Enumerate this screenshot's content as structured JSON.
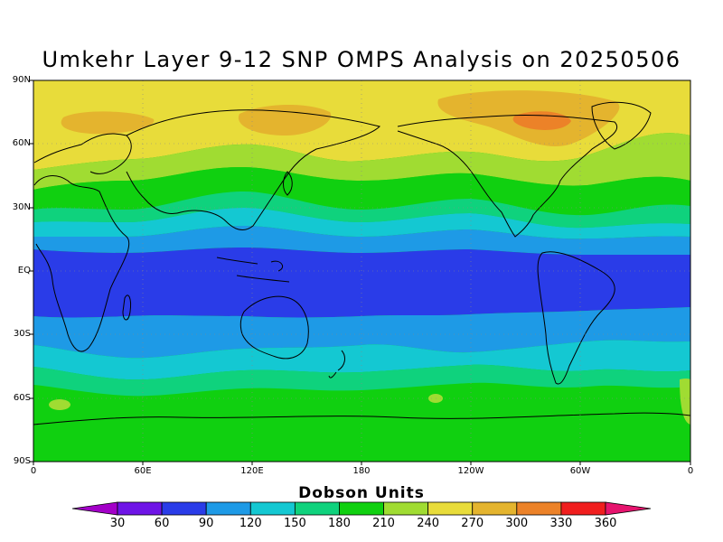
{
  "title": "Umkehr Layer 9-12 SNP OMPS Analysis on 20250506",
  "colorbar": {
    "label": "Dobson Units",
    "ticks": [
      "30",
      "60",
      "90",
      "120",
      "150",
      "180",
      "210",
      "240",
      "270",
      "300",
      "330",
      "360"
    ],
    "colors": [
      "#a300c8",
      "#6e14e6",
      "#2a3ce8",
      "#1e9ae6",
      "#14c8d2",
      "#0fd27d",
      "#10d010",
      "#a0dc32",
      "#e8dc3a",
      "#e4b42e",
      "#ec8228",
      "#f01e1e",
      "#e6146e"
    ]
  },
  "axes": {
    "lat_ticks": [
      "90N",
      "60N",
      "30N",
      "EQ",
      "30S",
      "60S",
      "90S"
    ],
    "lon_ticks": [
      "0",
      "60E",
      "120E",
      "180",
      "120W",
      "60W",
      "0"
    ]
  },
  "map_data": {
    "variable": "Umkehr ozone, layers 9-12",
    "units": "Dobson Units",
    "date": "20250506",
    "projection": "equirectangular",
    "bands": [
      {
        "region": "equatorial belt (~15N-20S)",
        "range": "60-90"
      },
      {
        "region": "tropics/subtropics (~15-40 both hemispheres)",
        "range": "90-150"
      },
      {
        "region": "southern mid-latitudes (~45S-90S)",
        "range": "180-210"
      },
      {
        "region": "northern mid-latitudes (~40N-55N)",
        "range": "180-240"
      },
      {
        "region": "northern high latitudes (~60N-90N)",
        "range": "240-270"
      },
      {
        "region": "patches over northern Canada/Greenland and Siberia",
        "range": "270-300"
      },
      {
        "region": "max over Hudson Bay area",
        "range": "300-330"
      }
    ]
  }
}
